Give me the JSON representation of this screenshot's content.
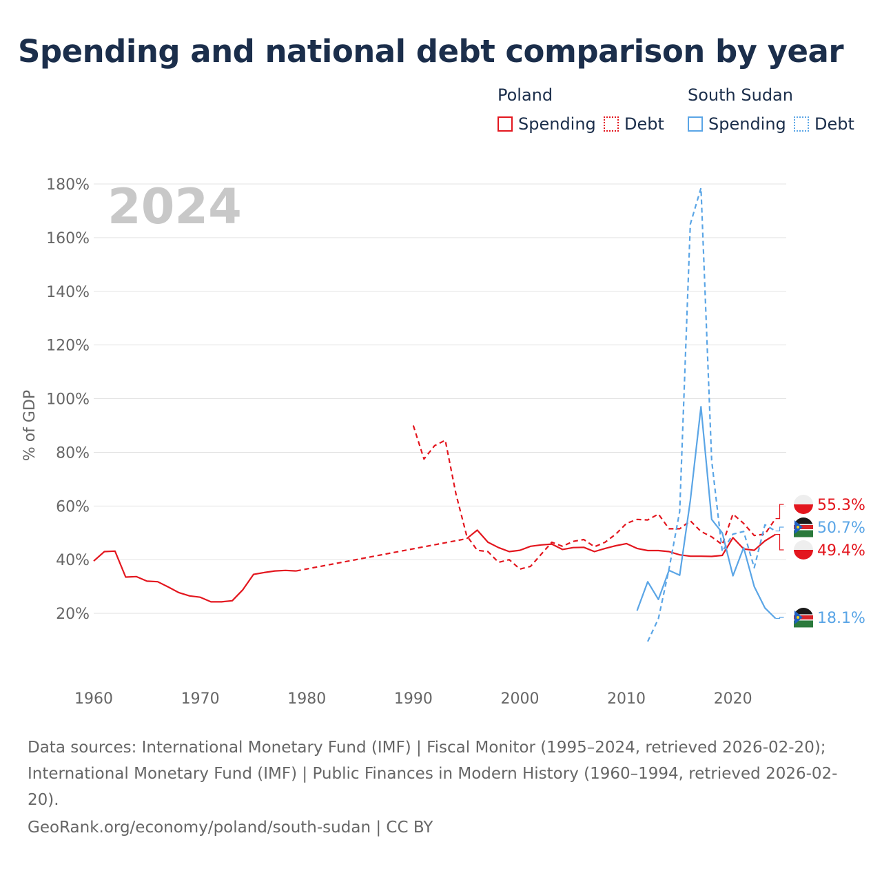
{
  "title": "Spending and national debt comparison by year",
  "legend": {
    "groups": [
      {
        "name": "Poland",
        "spending_label": "Spending",
        "debt_label": "Debt"
      },
      {
        "name": "South Sudan",
        "spending_label": "Spending",
        "debt_label": "Debt"
      }
    ]
  },
  "colors": {
    "poland": "#e3161e",
    "south_sudan": "#5aa5e6",
    "grid": "#e3e3e3",
    "axis_text": "#666666",
    "year_watermark": "#c8c8c8"
  },
  "footer": {
    "sources": "Data sources: International Monetary Fund (IMF) | Fiscal Monitor (1995–2024, retrieved 2026-02-20); International Monetary Fund (IMF) | Public Finances in Modern History (1960–1994, retrieved 2026-02-20).",
    "credit": "GeoRank.org/economy/poland/south-sudan | CC BY"
  },
  "chart_data": {
    "type": "line",
    "title": "Spending and national debt comparison by year",
    "year_label": "2024",
    "ylabel": "% of GDP",
    "xlabel": "",
    "xlim": [
      1960,
      2025
    ],
    "ylim": [
      0,
      180
    ],
    "x_ticks": [
      1960,
      1970,
      1980,
      1990,
      2000,
      2010,
      2020
    ],
    "y_ticks": [
      20,
      40,
      60,
      80,
      100,
      120,
      140,
      160,
      180
    ],
    "y_tick_labels": [
      "20%",
      "40%",
      "60%",
      "80%",
      "100%",
      "120%",
      "140%",
      "160%",
      "180%"
    ],
    "grid": true,
    "series": [
      {
        "name": "Poland Spending",
        "country": "poland",
        "style": "solid",
        "segments": [
          [
            [
              1960,
              39.5
            ],
            [
              1961,
              43
            ],
            [
              1962,
              43.2
            ],
            [
              1963,
              33.5
            ],
            [
              1964,
              33.7
            ],
            [
              1965,
              32
            ],
            [
              1966,
              31.8
            ],
            [
              1967,
              29.8
            ],
            [
              1968,
              27.7
            ],
            [
              1969,
              26.5
            ],
            [
              1970,
              26
            ],
            [
              1971,
              24.3
            ],
            [
              1972,
              24.3
            ],
            [
              1973,
              24.7
            ],
            [
              1974,
              28.8
            ],
            [
              1975,
              34.5
            ],
            [
              1976,
              35.2
            ],
            [
              1977,
              35.8
            ],
            [
              1978,
              36
            ],
            [
              1979,
              35.8
            ]
          ],
          [
            [
              1995,
              47.8
            ],
            [
              1996,
              51
            ],
            [
              1997,
              46.5
            ],
            [
              1998,
              44.5
            ],
            [
              1999,
              43
            ],
            [
              2000,
              43.5
            ],
            [
              2001,
              45
            ],
            [
              2002,
              45.5
            ],
            [
              2003,
              45.8
            ],
            [
              2004,
              43.8
            ],
            [
              2005,
              44.5
            ],
            [
              2006,
              44.6
            ],
            [
              2007,
              43
            ],
            [
              2008,
              44.2
            ],
            [
              2009,
              45.2
            ],
            [
              2010,
              46
            ],
            [
              2011,
              44.2
            ],
            [
              2012,
              43.4
            ],
            [
              2013,
              43.4
            ],
            [
              2014,
              43
            ],
            [
              2015,
              41.8
            ],
            [
              2016,
              41.3
            ],
            [
              2017,
              41.3
            ],
            [
              2018,
              41.2
            ],
            [
              2019,
              41.6
            ],
            [
              2020,
              48.2
            ],
            [
              2021,
              44
            ],
            [
              2022,
              43.5
            ],
            [
              2023,
              47
            ],
            [
              2024,
              49.4
            ]
          ]
        ]
      },
      {
        "name": "Poland Debt",
        "country": "poland",
        "style": "dashed",
        "segments": [
          [
            [
              1979,
              35.8
            ],
            [
              1995,
              47.8
            ]
          ],
          [
            [
              1990,
              90
            ],
            [
              1991,
              77.5
            ],
            [
              1992,
              82.5
            ],
            [
              1993,
              84.5
            ],
            [
              1994,
              64.5
            ],
            [
              1995,
              49
            ],
            [
              1996,
              43.5
            ],
            [
              1997,
              43
            ],
            [
              1998,
              39
            ],
            [
              1999,
              40
            ],
            [
              2000,
              36.5
            ],
            [
              2001,
              37.5
            ],
            [
              2002,
              42
            ],
            [
              2003,
              46.5
            ],
            [
              2004,
              45
            ],
            [
              2005,
              46.8
            ],
            [
              2006,
              47.5
            ],
            [
              2007,
              44.8
            ],
            [
              2008,
              46.5
            ],
            [
              2009,
              49.5
            ],
            [
              2010,
              53.5
            ],
            [
              2011,
              55
            ],
            [
              2012,
              54.8
            ],
            [
              2013,
              57
            ],
            [
              2014,
              51.5
            ],
            [
              2015,
              51.5
            ],
            [
              2016,
              54.5
            ],
            [
              2017,
              50.5
            ],
            [
              2018,
              48.5
            ],
            [
              2019,
              45.6
            ],
            [
              2020,
              57
            ],
            [
              2021,
              53.5
            ],
            [
              2022,
              49
            ],
            [
              2023,
              49.5
            ],
            [
              2024,
              55.3
            ]
          ]
        ]
      },
      {
        "name": "South Sudan Spending",
        "country": "south_sudan",
        "style": "solid",
        "segments": [
          [
            [
              2011,
              21
            ],
            [
              2012,
              31.8
            ],
            [
              2013,
              25.2
            ],
            [
              2014,
              36
            ],
            [
              2015,
              34.2
            ],
            [
              2016,
              62
            ],
            [
              2017,
              97
            ],
            [
              2018,
              55
            ],
            [
              2019,
              50
            ],
            [
              2020,
              34
            ],
            [
              2021,
              44.5
            ],
            [
              2022,
              30
            ],
            [
              2023,
              22
            ],
            [
              2024,
              18.1
            ]
          ]
        ]
      },
      {
        "name": "South Sudan Debt",
        "country": "south_sudan",
        "style": "dashed",
        "segments": [
          [
            [
              2012,
              9.5
            ],
            [
              2013,
              18
            ],
            [
              2014,
              36.5
            ],
            [
              2015,
              58
            ],
            [
              2016,
              165
            ],
            [
              2017,
              178.5
            ],
            [
              2018,
              77
            ],
            [
              2019,
              43
            ],
            [
              2020,
              49.5
            ],
            [
              2021,
              50.5
            ],
            [
              2022,
              37
            ],
            [
              2023,
              53
            ],
            [
              2024,
              50.7
            ]
          ]
        ]
      }
    ],
    "end_labels": [
      {
        "series": "Poland Debt",
        "text": "55.3%",
        "value": 55.3,
        "country": "poland"
      },
      {
        "series": "South Sudan Debt",
        "text": "50.7%",
        "value": 50.7,
        "country": "south_sudan"
      },
      {
        "series": "Poland Spending",
        "text": "49.4%",
        "value": 49.4,
        "country": "poland"
      },
      {
        "series": "South Sudan Spending",
        "text": "18.1%",
        "value": 18.1,
        "country": "south_sudan"
      }
    ]
  }
}
